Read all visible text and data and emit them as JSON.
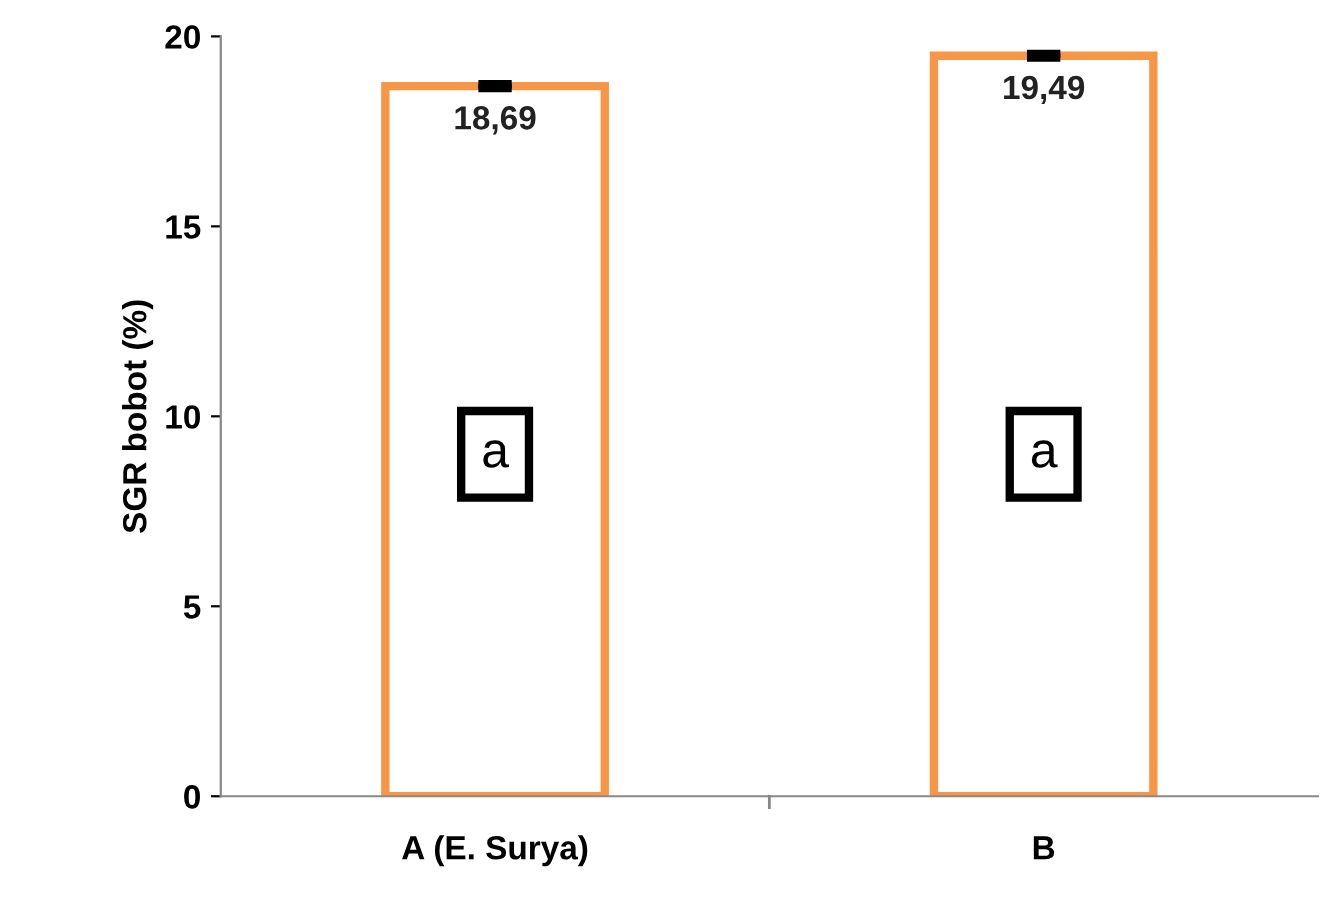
{
  "chart_data": {
    "type": "bar",
    "ylabel": "SGR bobot (%)",
    "categories": [
      "A (E. Surya)",
      "B"
    ],
    "values": [
      18.69,
      19.49
    ],
    "errors": [
      0.05,
      0.05
    ],
    "color": "#f79646",
    "value_labels": [
      "18,69",
      "19,49"
    ],
    "ylim": [
      0,
      20
    ],
    "yticks": [
      0,
      5,
      10,
      15,
      20
    ],
    "grid": false,
    "annotations": [
      {
        "text": "a",
        "x": "A (E. Surya)",
        "y": 9
      },
      {
        "text": "a",
        "x": "B",
        "y": 9
      }
    ]
  }
}
